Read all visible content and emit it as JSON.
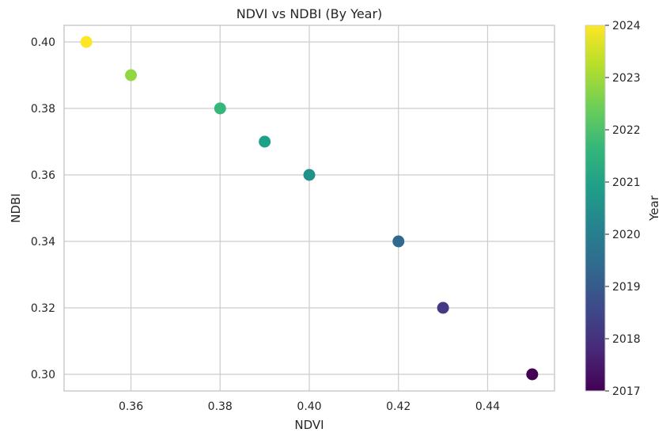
{
  "chart_data": {
    "type": "scatter",
    "title": "NDVI vs NDBI (By Year)",
    "xlabel": "NDVI",
    "ylabel": "NDBI",
    "xlim": [
      0.345,
      0.455
    ],
    "ylim": [
      0.295,
      0.405
    ],
    "xticks": [
      0.36,
      0.38,
      0.4,
      0.42,
      0.44
    ],
    "xtick_labels": [
      "0.36",
      "0.38",
      "0.40",
      "0.42",
      "0.44"
    ],
    "yticks": [
      0.3,
      0.32,
      0.34,
      0.36,
      0.38,
      0.4
    ],
    "ytick_labels": [
      "0.30",
      "0.32",
      "0.34",
      "0.36",
      "0.38",
      "0.40"
    ],
    "grid": true,
    "points": [
      {
        "year": 2017,
        "x": 0.45,
        "y": 0.3,
        "color": "#440154"
      },
      {
        "year": 2018,
        "x": 0.43,
        "y": 0.32,
        "color": "#443983"
      },
      {
        "year": 2019,
        "x": 0.42,
        "y": 0.34,
        "color": "#31688e"
      },
      {
        "year": 2020,
        "x": 0.4,
        "y": 0.36,
        "color": "#21918c"
      },
      {
        "year": 2021,
        "x": 0.39,
        "y": 0.37,
        "color": "#1fa187"
      },
      {
        "year": 2022,
        "x": 0.38,
        "y": 0.38,
        "color": "#35b779"
      },
      {
        "year": 2023,
        "x": 0.36,
        "y": 0.39,
        "color": "#90d743"
      },
      {
        "year": 2024,
        "x": 0.35,
        "y": 0.4,
        "color": "#fde725"
      }
    ],
    "colorbar": {
      "label": "Year",
      "range": [
        2017,
        2024
      ],
      "ticks": [
        2017,
        2018,
        2019,
        2020,
        2021,
        2022,
        2023,
        2024
      ],
      "tick_labels": [
        "2017",
        "2018",
        "2019",
        "2020",
        "2021",
        "2022",
        "2023",
        "2024"
      ],
      "colormap": "viridis",
      "stops": [
        "#440154",
        "#482878",
        "#3e4989",
        "#31688e",
        "#26828e",
        "#1f9e89",
        "#35b779",
        "#6ece58",
        "#b5de2b",
        "#fde725"
      ]
    }
  }
}
